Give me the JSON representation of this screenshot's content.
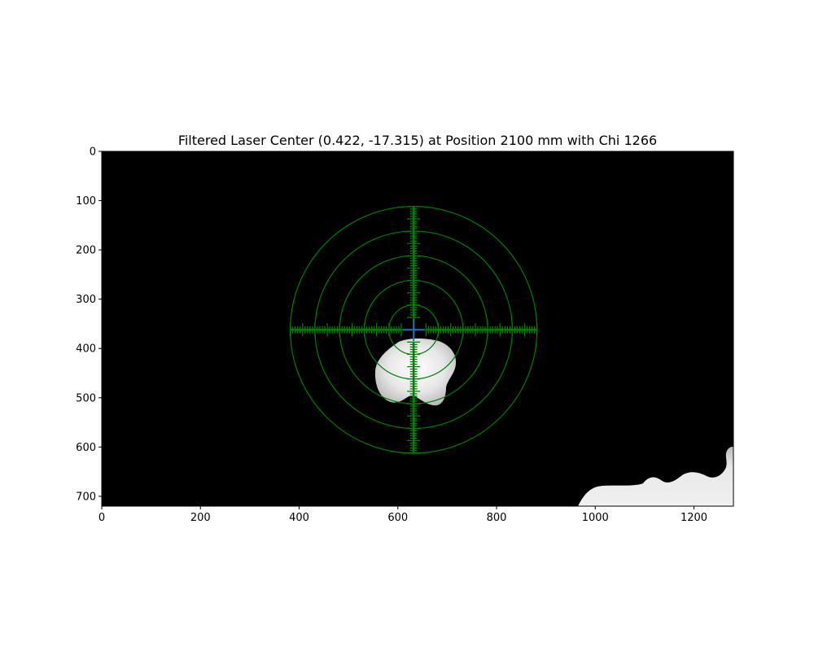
{
  "chart_data": {
    "type": "image",
    "title": "Filtered Laser Center (0.422, -17.315) at Position 2100 mm with Chi 1266",
    "image_size": {
      "width": 1280,
      "height": 720
    },
    "xlim": [
      0,
      1280
    ],
    "ylim": [
      720,
      0
    ],
    "x_ticks": [
      0,
      200,
      400,
      600,
      800,
      1000,
      1200
    ],
    "y_ticks": [
      0,
      100,
      200,
      300,
      400,
      500,
      600,
      700
    ],
    "x_tick_labels": [
      "0",
      "200",
      "400",
      "600",
      "800",
      "1000",
      "1200"
    ],
    "y_tick_labels": [
      "0",
      "100",
      "200",
      "300",
      "400",
      "500",
      "600",
      "700"
    ],
    "grid": false,
    "background_color": "#000000",
    "overlay": {
      "color": "#008000",
      "center": {
        "x": 632,
        "y": 362
      },
      "ring_radii": [
        50,
        100,
        150,
        200,
        250
      ],
      "crosshair_half_length": 250,
      "crosshair_gap": 25,
      "minor_tick_spacing": 5,
      "major_tick_spacing": 25
    },
    "laser_center_marker": {
      "x": 632,
      "y": 362,
      "color": "#1f77b4"
    },
    "bright_regions": [
      {
        "name": "laser-spot",
        "color": "#e8e8e8"
      },
      {
        "name": "corner-blob",
        "color": "#e0e0e0"
      }
    ]
  }
}
